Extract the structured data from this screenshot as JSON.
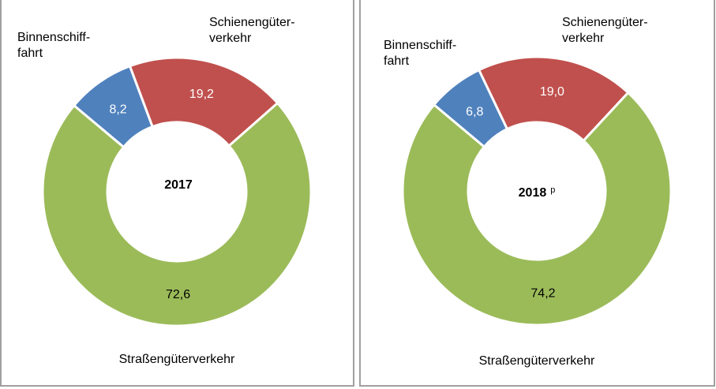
{
  "chart_data": [
    {
      "type": "pie",
      "subtype": "donut",
      "center_label": "2017",
      "center_label_suffix": "",
      "categories": [
        "Binnenschifffahrt",
        "Schienengüterverkehr",
        "Straßengüterverkehr"
      ],
      "category_labels": [
        [
          "Binnenschiff-",
          "fahrt"
        ],
        [
          "Schienengüter-",
          "verkehr"
        ],
        [
          "Straßengüterverkehr"
        ]
      ],
      "values": [
        8.2,
        19.2,
        72.6
      ],
      "value_labels": [
        "8,2",
        "19,2",
        "72,6"
      ],
      "colors": [
        "#4f81bd",
        "#c0504d",
        "#9bbb59"
      ]
    },
    {
      "type": "pie",
      "subtype": "donut",
      "center_label": "2018",
      "center_label_suffix": "p",
      "categories": [
        "Binnenschifffahrt",
        "Schienengüterverkehr",
        "Straßengüterverkehr"
      ],
      "category_labels": [
        [
          "Binnenschiff-",
          "fahrt"
        ],
        [
          "Schienengüter-",
          "verkehr"
        ],
        [
          "Straßengüterverkehr"
        ]
      ],
      "values": [
        6.8,
        19.0,
        74.2
      ],
      "value_labels": [
        "6,8",
        "19,0",
        "74,2"
      ],
      "colors": [
        "#4f81bd",
        "#c0504d",
        "#9bbb59"
      ]
    }
  ]
}
